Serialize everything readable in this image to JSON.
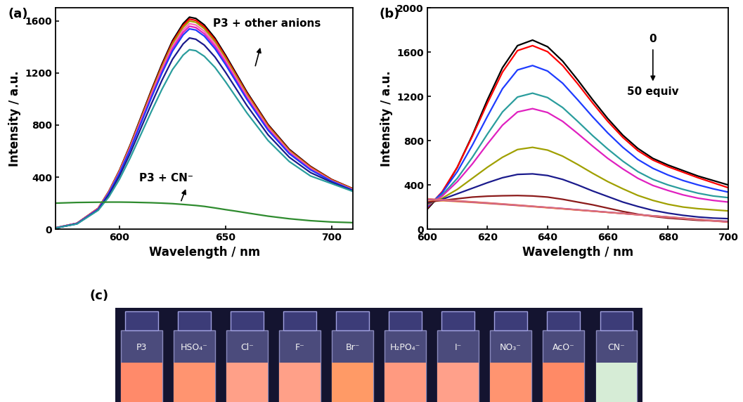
{
  "chart_data": [
    {
      "type": "line",
      "title": "(a)",
      "x_label": "Wavelength / nm",
      "y_label": "Intensity / a.u.",
      "x": [
        570,
        580,
        590,
        595,
        600,
        605,
        610,
        615,
        620,
        625,
        630,
        633,
        636,
        640,
        645,
        650,
        655,
        660,
        670,
        680,
        690,
        700,
        710
      ],
      "xlim": [
        570,
        710
      ],
      "ylim": [
        0,
        1700
      ],
      "xticks": [
        600,
        650,
        700
      ],
      "yticks": [
        0,
        400,
        800,
        1200,
        1600
      ],
      "series": [
        {
          "color": "#000000",
          "values": [
            10,
            45,
            160,
            290,
            452,
            644,
            855,
            1066,
            1268,
            1449,
            1580,
            1630,
            1620,
            1570,
            1469,
            1338,
            1197,
            1056,
            805,
            614,
            483,
            382,
            311
          ]
        },
        {
          "color": "#ff0000",
          "values": [
            10,
            45,
            160,
            289,
            449,
            638,
            847,
            1057,
            1256,
            1436,
            1565,
            1615,
            1605,
            1555,
            1456,
            1326,
            1186,
            1047,
            798,
            608,
            479,
            380,
            310
          ]
        },
        {
          "color": "#a0a000",
          "values": [
            10,
            45,
            158,
            287,
            445,
            632,
            840,
            1047,
            1245,
            1423,
            1551,
            1600,
            1591,
            1541,
            1442,
            1314,
            1176,
            1037,
            790,
            603,
            474,
            376,
            307
          ]
        },
        {
          "color": "#ff69b4",
          "values": [
            10,
            44,
            156,
            283,
            439,
            624,
            829,
            1034,
            1229,
            1404,
            1531,
            1580,
            1570,
            1521,
            1424,
            1297,
            1160,
            1024,
            780,
            595,
            468,
            372,
            304
          ]
        },
        {
          "color": "#e020c0",
          "values": [
            10,
            44,
            155,
            279,
            433,
            616,
            819,
            1021,
            1213,
            1387,
            1512,
            1560,
            1550,
            1502,
            1406,
            1281,
            1146,
            1011,
            770,
            587,
            462,
            370,
            300
          ]
        },
        {
          "color": "#1e3cff",
          "values": [
            9,
            42,
            152,
            276,
            428,
            609,
            808,
            1008,
            1198,
            1369,
            1493,
            1540,
            1531,
            1484,
            1388,
            1265,
            1132,
            999,
            761,
            580,
            456,
            368,
            299
          ]
        },
        {
          "color": "#1a1a8c",
          "values": [
            9,
            41,
            148,
            263,
            408,
            580,
            771,
            961,
            1143,
            1306,
            1424,
            1470,
            1460,
            1415,
            1324,
            1206,
            1079,
            952,
            726,
            553,
            435,
            360,
            295
          ]
        },
        {
          "color": "#2a9d9d",
          "values": [
            9,
            40,
            145,
            247,
            383,
            545,
            724,
            903,
            1074,
            1227,
            1338,
            1380,
            1372,
            1329,
            1244,
            1133,
            1014,
            895,
            682,
            520,
            409,
            350,
            290
          ]
        },
        {
          "color": "#2e8b2e",
          "values": [
            200,
            205,
            207,
            208,
            208,
            207,
            205,
            203,
            200,
            196,
            190,
            186,
            182,
            175,
            163,
            150,
            138,
            125,
            100,
            80,
            65,
            55,
            50
          ]
        }
      ],
      "annotations": [
        "P3 + other anions",
        "P3 + CN⁻"
      ]
    },
    {
      "type": "line",
      "title": "(b)",
      "x_label": "Wavelength / nm",
      "y_label": "Intensity / a.u.",
      "x": [
        600,
        605,
        610,
        615,
        620,
        625,
        630,
        635,
        640,
        645,
        650,
        655,
        660,
        665,
        670,
        675,
        680,
        685,
        690,
        695,
        700
      ],
      "xlim": [
        600,
        700
      ],
      "ylim": [
        0,
        2000
      ],
      "xticks": [
        600,
        620,
        640,
        660,
        680,
        700
      ],
      "yticks": [
        0,
        400,
        800,
        1200,
        1600,
        2000
      ],
      "series": [
        {
          "color": "#000000",
          "values": [
            180,
            330,
            560,
            850,
            1170,
            1460,
            1660,
            1710,
            1650,
            1520,
            1350,
            1170,
            1000,
            850,
            730,
            640,
            580,
            530,
            480,
            440,
            400
          ]
        },
        {
          "color": "#ff0000",
          "values": [
            190,
            340,
            560,
            840,
            1140,
            1420,
            1615,
            1660,
            1605,
            1480,
            1315,
            1140,
            975,
            830,
            710,
            625,
            565,
            515,
            465,
            420,
            375
          ]
        },
        {
          "color": "#1e3cff",
          "values": [
            200,
            330,
            520,
            760,
            1020,
            1270,
            1440,
            1480,
            1430,
            1320,
            1170,
            1015,
            870,
            740,
            630,
            550,
            490,
            440,
            400,
            365,
            335
          ]
        },
        {
          "color": "#2a9d9d",
          "values": [
            210,
            310,
            460,
            650,
            860,
            1060,
            1195,
            1230,
            1190,
            1100,
            975,
            845,
            725,
            615,
            520,
            450,
            400,
            360,
            325,
            300,
            285
          ]
        },
        {
          "color": "#e020c0",
          "values": [
            215,
            300,
            430,
            590,
            770,
            940,
            1060,
            1090,
            1055,
            975,
            865,
            750,
            640,
            545,
            460,
            395,
            350,
            310,
            280,
            260,
            245
          ]
        },
        {
          "color": "#a0a000",
          "values": [
            225,
            280,
            360,
            460,
            560,
            650,
            720,
            740,
            715,
            660,
            585,
            505,
            430,
            365,
            305,
            260,
            225,
            200,
            185,
            175,
            165
          ]
        },
        {
          "color": "#1a1a8c",
          "values": [
            235,
            270,
            320,
            370,
            420,
            465,
            495,
            500,
            485,
            450,
            400,
            345,
            295,
            245,
            205,
            170,
            145,
            125,
            110,
            100,
            95
          ]
        },
        {
          "color": "#8b1a1a",
          "values": [
            245,
            260,
            275,
            290,
            298,
            302,
            304,
            300,
            290,
            270,
            245,
            220,
            190,
            160,
            135,
            115,
            100,
            90,
            80,
            75,
            70
          ]
        },
        {
          "color": "#ff8c00",
          "values": [
            265,
            258,
            250,
            242,
            233,
            224,
            214,
            204,
            194,
            184,
            173,
            163,
            152,
            142,
            131,
            120,
            110,
            99,
            88,
            77,
            65
          ]
        },
        {
          "color": "#8a2be2",
          "values": [
            270,
            262,
            254,
            245,
            236,
            226,
            216,
            206,
            196,
            186,
            175,
            164,
            153,
            142,
            131,
            120,
            109,
            98,
            87,
            76,
            66
          ]
        },
        {
          "color": "#e07070",
          "values": [
            275,
            265,
            256,
            247,
            238,
            228,
            218,
            207,
            196,
            185,
            174,
            163,
            152,
            141,
            130,
            119,
            108,
            97,
            86,
            75,
            62
          ]
        }
      ],
      "annotations": [
        "0",
        "50 equiv"
      ]
    }
  ],
  "photo": {
    "title": "(c)",
    "labels": [
      "P3",
      "HSO₄⁻",
      "Cl⁻",
      "F⁻",
      "Br⁻",
      "H₂PO₄⁻",
      "I⁻",
      "NO₃⁻",
      "AcO⁻",
      "CN⁻"
    ],
    "colors": [
      "#ff8a6a",
      "#ff9470",
      "#ffa088",
      "#ffa088",
      "#ff9a66",
      "#ff9a80",
      "#ffa08a",
      "#ff9470",
      "#ff8a66",
      "#d6ecd6"
    ]
  }
}
